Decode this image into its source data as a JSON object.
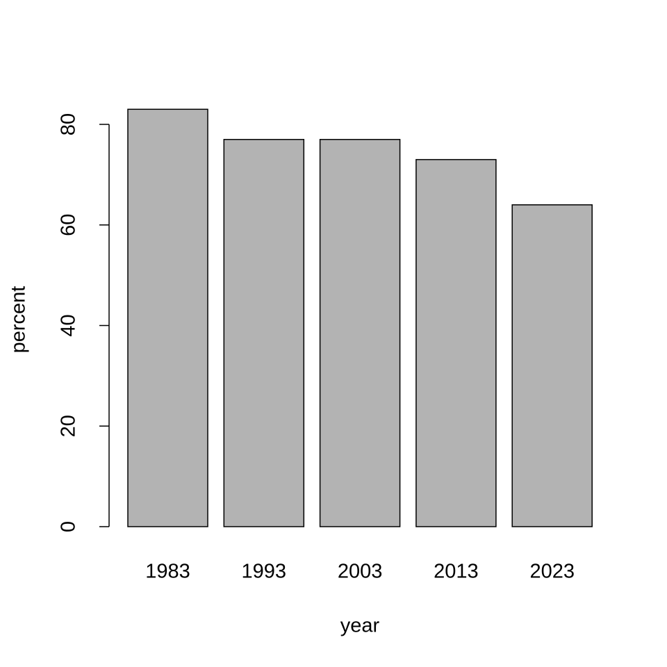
{
  "chart_data": {
    "type": "bar",
    "xlabel": "year",
    "ylabel": "percent",
    "categories": [
      "1983",
      "1993",
      "2003",
      "2013",
      "2023"
    ],
    "values": [
      83,
      77,
      77,
      73,
      64
    ],
    "color": "#b3b3b3",
    "ylim": [
      0,
      80
    ],
    "yticks": [
      0,
      20,
      40,
      60,
      80
    ]
  }
}
